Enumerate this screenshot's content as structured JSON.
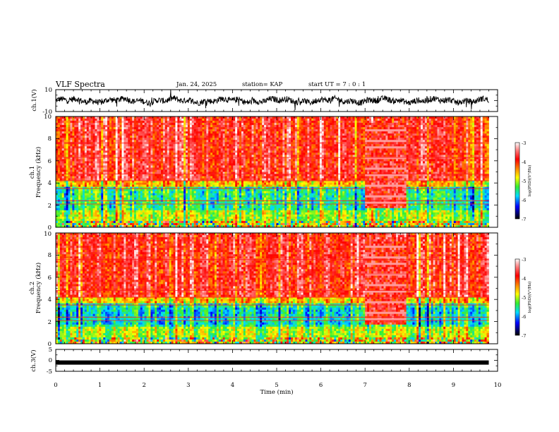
{
  "header": {
    "title": "VLF Spectra",
    "date": "Jan. 24, 2025",
    "station": "station= KAP",
    "start": "start UT =  7 : 0 : 1"
  },
  "chart_data": [
    {
      "type": "line",
      "panel": "ch1-waveform",
      "ylabel": "ch.1(V)",
      "ylim": [
        -10,
        10
      ],
      "yticks": [
        "10",
        "-10"
      ],
      "xlim": [
        0,
        10
      ],
      "note_values": "noisy waveform oscillating roughly between -4 and +4 V across 0 to 9.8 min"
    },
    {
      "type": "heatmap",
      "panel": "ch1-spectrogram",
      "ylabel": "ch.1\nFrequency (kHz)",
      "ylabel_top": "ch.1",
      "ylabel_main": "Frequency (kHz)",
      "ylim": [
        0,
        10
      ],
      "yticks": [
        "0",
        "2",
        "4",
        "6",
        "8",
        "10"
      ],
      "xlim": [
        0,
        10
      ],
      "data_extent_min": 9.8,
      "colorbar": {
        "label": "log(PSD)(V²/Hz)",
        "range": [
          -7,
          -3
        ],
        "ticks": [
          "-3",
          "-4",
          "-5",
          "-6",
          "-7"
        ]
      }
    },
    {
      "type": "heatmap",
      "panel": "ch2-spectrogram",
      "ylabel_top": "ch.2",
      "ylabel_main": "Frequency (kHz)",
      "ylim": [
        0,
        10
      ],
      "yticks": [
        "0",
        "2",
        "4",
        "6",
        "8",
        "10"
      ],
      "xlim": [
        0,
        10
      ],
      "data_extent_min": 9.8,
      "colorbar": {
        "label": "log(PSD)(V²/Hz)",
        "range": [
          -7,
          -3
        ],
        "ticks": [
          "-3",
          "-4",
          "-5",
          "-6",
          "-7"
        ]
      }
    },
    {
      "type": "line",
      "panel": "ch3-waveform",
      "ylabel": "ch.3(V)",
      "ylim": [
        -5,
        5
      ],
      "yticks": [
        "5",
        "0",
        "-5"
      ],
      "xlim": [
        0,
        10
      ],
      "constant_value": -1,
      "xlabel": "Time (min)",
      "xticks": [
        "0",
        "1",
        "2",
        "3",
        "4",
        "5",
        "6",
        "7",
        "8",
        "9",
        "10"
      ]
    }
  ]
}
